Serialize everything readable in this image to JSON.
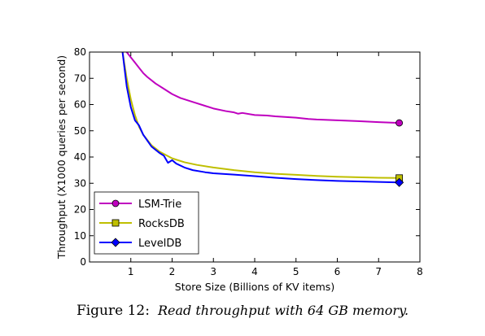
{
  "chart_data": {
    "type": "line",
    "title": "",
    "xlabel": "Store Size (Billions of KV items)",
    "ylabel": "Throughput (X1000 queries per second)",
    "xlim": [
      0,
      8
    ],
    "ylim": [
      0,
      80
    ],
    "xticks": [
      1,
      2,
      3,
      4,
      5,
      6,
      7,
      8
    ],
    "yticks": [
      0,
      10,
      20,
      30,
      40,
      50,
      60,
      70,
      80
    ],
    "grid": false,
    "legend_position": "lower-left",
    "series": [
      {
        "name": "LSM-Trie",
        "color": "#bf00bf",
        "marker": "circle",
        "x": [
          0.9,
          1.0,
          1.1,
          1.2,
          1.3,
          1.4,
          1.6,
          1.8,
          2.0,
          2.2,
          2.5,
          2.8,
          3.0,
          3.3,
          3.5,
          3.6,
          3.7,
          4.0,
          4.3,
          4.5,
          5.0,
          5.3,
          5.5,
          6.0,
          6.5,
          7.0,
          7.5
        ],
        "y": [
          80,
          78,
          76,
          74,
          72,
          70.5,
          68,
          66,
          64,
          62.5,
          61,
          59.5,
          58.5,
          57.5,
          57,
          56.5,
          56.8,
          56,
          55.8,
          55.5,
          55,
          54.5,
          54.3,
          54,
          53.7,
          53.3,
          53
        ]
      },
      {
        "name": "RocksDB",
        "color": "#bfbf00",
        "marker": "square",
        "x": [
          0.8,
          0.9,
          1.0,
          1.1,
          1.2,
          1.3,
          1.5,
          1.7,
          2.0,
          2.3,
          2.6,
          3.0,
          3.5,
          4.0,
          4.5,
          5.0,
          5.5,
          6.0,
          6.5,
          7.0,
          7.5
        ],
        "y": [
          80,
          70,
          62,
          56,
          51.5,
          48.5,
          44.5,
          42,
          39.5,
          38,
          37,
          36,
          35,
          34.2,
          33.6,
          33.2,
          32.8,
          32.5,
          32.3,
          32.1,
          32
        ]
      },
      {
        "name": "LevelDB",
        "color": "#0000ff",
        "marker": "diamond",
        "x": [
          0.8,
          0.9,
          1.0,
          1.1,
          1.2,
          1.3,
          1.5,
          1.7,
          1.8,
          1.9,
          2.0,
          2.1,
          2.3,
          2.5,
          2.8,
          3.0,
          3.5,
          4.0,
          4.5,
          5.0,
          5.5,
          6.0,
          6.5,
          7.0,
          7.5
        ],
        "y": [
          80,
          67,
          59,
          54,
          52,
          48.5,
          44,
          41.5,
          40.5,
          37.8,
          38.8,
          37.5,
          36,
          35,
          34.2,
          33.8,
          33.3,
          32.7,
          32.1,
          31.6,
          31.2,
          30.9,
          30.7,
          30.5,
          30.3
        ]
      }
    ]
  },
  "caption": {
    "prefix": "Figure 12:",
    "text": "Read throughput with 64 GB memory."
  }
}
